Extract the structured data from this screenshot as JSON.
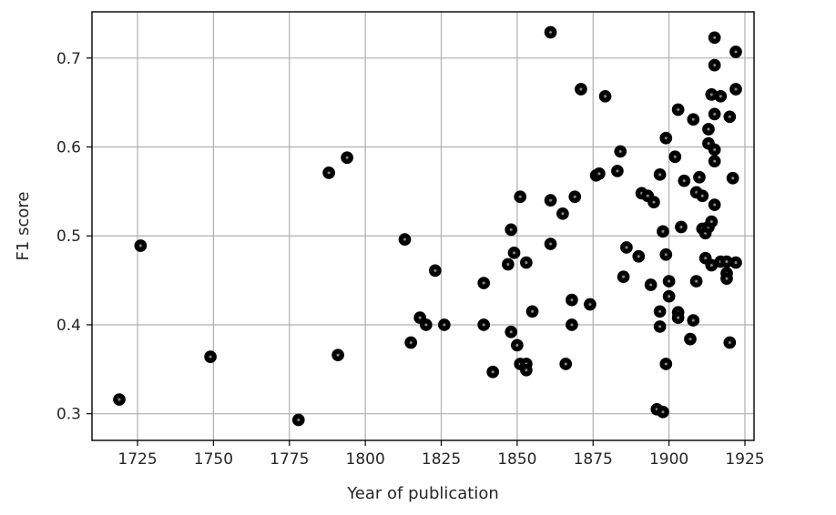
{
  "chart_data": {
    "type": "scatter",
    "title": "",
    "xlabel": "Year of publication",
    "ylabel": "F1 score",
    "xlim": [
      1710,
      1928
    ],
    "ylim": [
      0.27,
      0.752
    ],
    "xticks": [
      1725,
      1750,
      1775,
      1800,
      1825,
      1850,
      1875,
      1900,
      1925
    ],
    "yticks": [
      0.3,
      0.4,
      0.5,
      0.6,
      0.7
    ],
    "xtick_labels": [
      "1725",
      "1750",
      "1775",
      "1800",
      "1825",
      "1850",
      "1875",
      "1900",
      "1925"
    ],
    "ytick_labels": [
      "0.3",
      "0.4",
      "0.5",
      "0.6",
      "0.7"
    ],
    "grid": true,
    "marker_color": "#000000",
    "points": [
      [
        1719,
        0.316
      ],
      [
        1726,
        0.489
      ],
      [
        1749,
        0.364
      ],
      [
        1778,
        0.293
      ],
      [
        1788,
        0.571
      ],
      [
        1791,
        0.366
      ],
      [
        1794,
        0.588
      ],
      [
        1813,
        0.496
      ],
      [
        1815,
        0.38
      ],
      [
        1818,
        0.408
      ],
      [
        1820,
        0.4
      ],
      [
        1823,
        0.461
      ],
      [
        1826,
        0.4
      ],
      [
        1839,
        0.4
      ],
      [
        1839,
        0.447
      ],
      [
        1842,
        0.347
      ],
      [
        1847,
        0.468
      ],
      [
        1848,
        0.392
      ],
      [
        1848,
        0.507
      ],
      [
        1849,
        0.481
      ],
      [
        1850,
        0.377
      ],
      [
        1851,
        0.544
      ],
      [
        1851,
        0.356
      ],
      [
        1853,
        0.356
      ],
      [
        1853,
        0.349
      ],
      [
        1853,
        0.47
      ],
      [
        1855,
        0.415
      ],
      [
        1861,
        0.729
      ],
      [
        1861,
        0.491
      ],
      [
        1861,
        0.54
      ],
      [
        1865,
        0.525
      ],
      [
        1866,
        0.356
      ],
      [
        1868,
        0.4
      ],
      [
        1868,
        0.428
      ],
      [
        1869,
        0.544
      ],
      [
        1871,
        0.665
      ],
      [
        1874,
        0.423
      ],
      [
        1876,
        0.568
      ],
      [
        1877,
        0.57
      ],
      [
        1879,
        0.657
      ],
      [
        1883,
        0.573
      ],
      [
        1884,
        0.595
      ],
      [
        1885,
        0.454
      ],
      [
        1886,
        0.487
      ],
      [
        1890,
        0.477
      ],
      [
        1891,
        0.548
      ],
      [
        1893,
        0.545
      ],
      [
        1894,
        0.445
      ],
      [
        1895,
        0.538
      ],
      [
        1896,
        0.305
      ],
      [
        1897,
        0.569
      ],
      [
        1897,
        0.398
      ],
      [
        1897,
        0.415
      ],
      [
        1898,
        0.302
      ],
      [
        1898,
        0.505
      ],
      [
        1899,
        0.61
      ],
      [
        1899,
        0.479
      ],
      [
        1899,
        0.356
      ],
      [
        1900,
        0.449
      ],
      [
        1900,
        0.432
      ],
      [
        1902,
        0.589
      ],
      [
        1903,
        0.642
      ],
      [
        1903,
        0.414
      ],
      [
        1903,
        0.408
      ],
      [
        1904,
        0.51
      ],
      [
        1905,
        0.562
      ],
      [
        1907,
        0.384
      ],
      [
        1908,
        0.631
      ],
      [
        1908,
        0.405
      ],
      [
        1909,
        0.549
      ],
      [
        1909,
        0.449
      ],
      [
        1910,
        0.566
      ],
      [
        1911,
        0.508
      ],
      [
        1911,
        0.545
      ],
      [
        1912,
        0.475
      ],
      [
        1912,
        0.503
      ],
      [
        1913,
        0.62
      ],
      [
        1913,
        0.604
      ],
      [
        1913,
        0.51
      ],
      [
        1914,
        0.516
      ],
      [
        1914,
        0.659
      ],
      [
        1914,
        0.467
      ],
      [
        1915,
        0.723
      ],
      [
        1915,
        0.692
      ],
      [
        1915,
        0.637
      ],
      [
        1915,
        0.597
      ],
      [
        1915,
        0.584
      ],
      [
        1915,
        0.535
      ],
      [
        1917,
        0.657
      ],
      [
        1917,
        0.471
      ],
      [
        1919,
        0.471
      ],
      [
        1919,
        0.458
      ],
      [
        1919,
        0.452
      ],
      [
        1920,
        0.634
      ],
      [
        1921,
        0.565
      ],
      [
        1920,
        0.38
      ],
      [
        1922,
        0.707
      ],
      [
        1922,
        0.665
      ],
      [
        1922,
        0.47
      ]
    ]
  }
}
